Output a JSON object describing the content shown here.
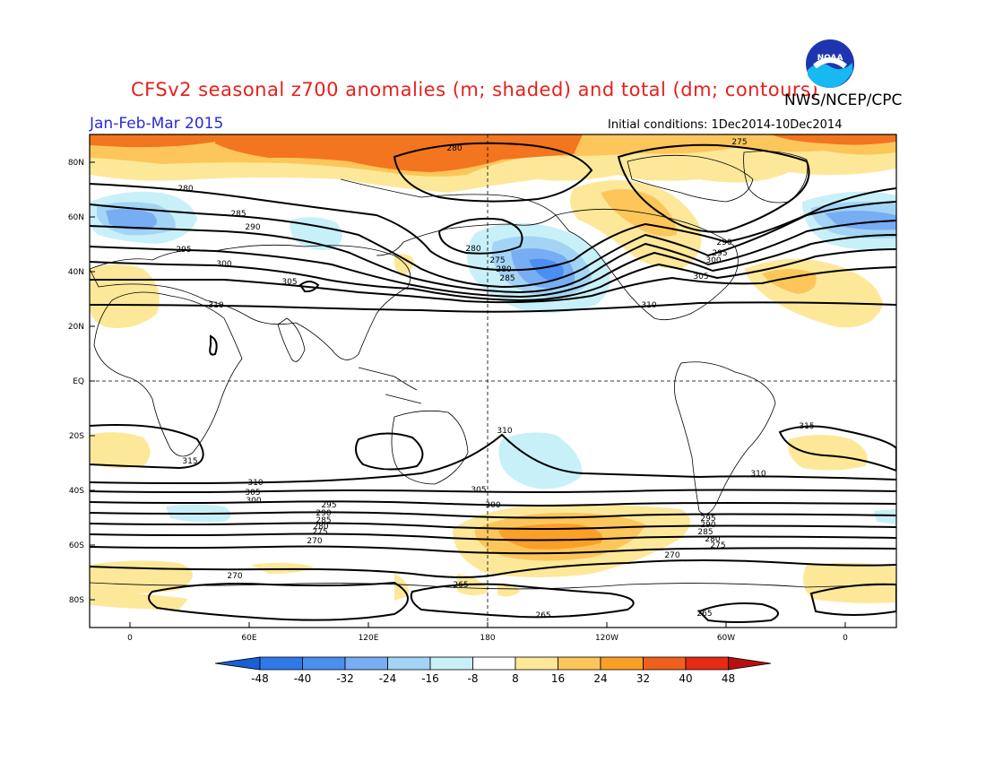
{
  "header": {
    "title": "CFSv2 seasonal z700 anomalies (m; shaded) and total (dm; contours)",
    "agency": "NWS/NCEP/CPC",
    "season": "Jan-Feb-Mar 2015",
    "initial_conditions": "Initial conditions: 1Dec2014-10Dec2014",
    "logo_text": "NOAA"
  },
  "axes": {
    "lat_labels": [
      "80N",
      "60N",
      "40N",
      "20N",
      "EQ",
      "20S",
      "40S",
      "60S",
      "80S"
    ],
    "lon_labels": [
      "0",
      "60E",
      "120E",
      "180",
      "120W",
      "60W",
      "0"
    ]
  },
  "colorbar": {
    "labels": [
      "-48",
      "-40",
      "-32",
      "-24",
      "-16",
      "-8",
      "8",
      "16",
      "24",
      "32",
      "40",
      "48"
    ],
    "colors": [
      "#1b5fd6",
      "#2f78e8",
      "#4b8ff0",
      "#77adf3",
      "#a3d4f6",
      "#c8f0f8",
      "#ffffff",
      "#fde89a",
      "#fdc65a",
      "#fba027",
      "#f0601d",
      "#e52b13",
      "#b81010"
    ]
  },
  "contour_labels": {
    "n_hemisphere": [
      "280",
      "275",
      "280",
      "285",
      "290",
      "295",
      "300",
      "305",
      "310",
      "280",
      "275",
      "280",
      "285",
      "290",
      "295",
      "300",
      "305",
      "310"
    ],
    "s_hemisphere": [
      "315",
      "310",
      "305",
      "300",
      "295",
      "290",
      "285",
      "280",
      "275",
      "270",
      "265",
      "310",
      "305",
      "300",
      "295",
      "290",
      "285",
      "280",
      "275",
      "270",
      "265",
      "315",
      "310",
      "270",
      "265"
    ]
  }
}
